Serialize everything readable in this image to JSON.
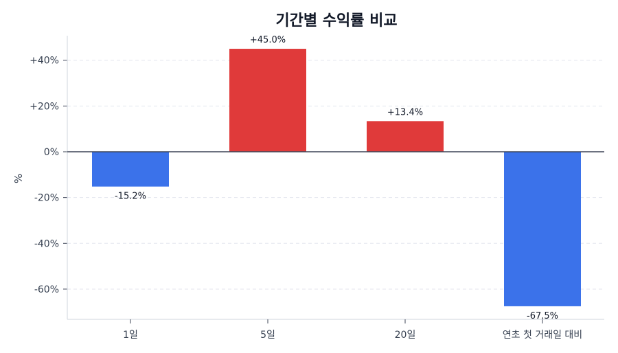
{
  "chart_data": {
    "type": "bar",
    "title": "기간별 수익률 비교",
    "xlabel": "",
    "ylabel": "%",
    "categories": [
      "1일",
      "5일",
      "20일",
      "연초 첫 거래일 대비"
    ],
    "values": [
      -15.2,
      45.0,
      13.4,
      -67.5
    ],
    "value_labels": [
      "-15.2%",
      "+45.0%",
      "+13.4%",
      "-67.5%"
    ],
    "ylim": [
      -73,
      51
    ],
    "yticks": [
      40,
      20,
      0,
      -20,
      -40,
      -60
    ],
    "ytick_labels": [
      "+40%",
      "+20%",
      "0%",
      "-20%",
      "-40%",
      "-60%"
    ],
    "grid": true,
    "legend": null,
    "colors": {
      "positive": "#e03a3a",
      "negative": "#3b72ea",
      "zero_line": "#3d4456",
      "grid": "#e3e6ee",
      "axis": "#cfd4de"
    }
  },
  "title": "기간별 수익률 비교"
}
